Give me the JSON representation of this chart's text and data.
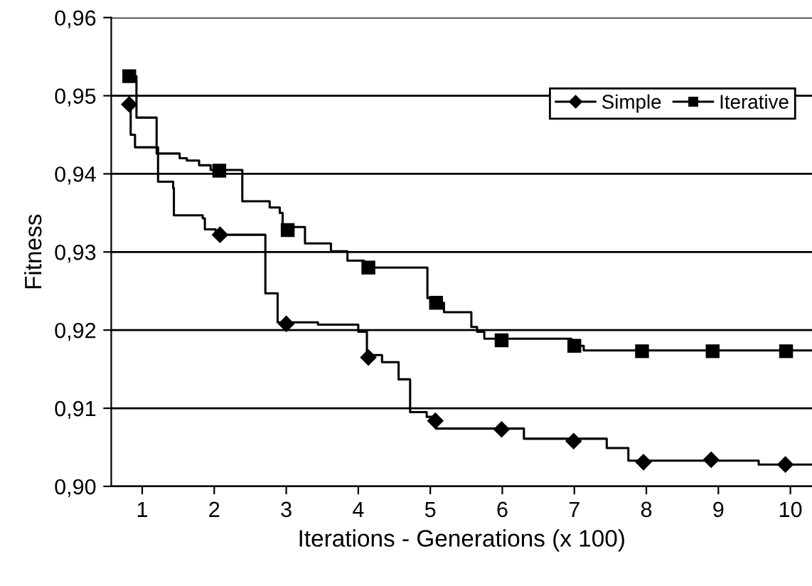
{
  "chart_data": {
    "type": "line",
    "xlabel": "Iterations - Generations (x 100)",
    "ylabel": "Fitness",
    "xlim": [
      0.57,
      10.3
    ],
    "ylim": [
      0.9,
      0.96
    ],
    "xticks": [
      1,
      2,
      3,
      4,
      5,
      6,
      7,
      8,
      9,
      10
    ],
    "yticks": [
      {
        "value": 0.9,
        "label": "0,90"
      },
      {
        "value": 0.91,
        "label": "0,91"
      },
      {
        "value": 0.92,
        "label": "0,92"
      },
      {
        "value": 0.93,
        "label": "0,93"
      },
      {
        "value": 0.94,
        "label": "0,94"
      },
      {
        "value": 0.95,
        "label": "0,95"
      },
      {
        "value": 0.96,
        "label": "0,96"
      }
    ],
    "grid": "y",
    "legend": "top right",
    "series": [
      {
        "color": "#000000",
        "x": [
          0.82,
          0.84,
          0.84,
          0.9,
          0.9,
          1.22,
          1.22,
          1.43,
          1.43,
          1.44,
          1.44,
          1.84,
          1.84,
          1.87,
          1.87,
          2.02,
          2.02,
          2.71,
          2.71,
          2.88,
          2.88,
          3.44,
          3.44,
          4.0,
          4.0,
          4.12,
          4.12,
          4.33,
          4.33,
          4.56,
          4.56,
          4.72,
          4.72,
          4.95,
          4.95,
          5.08,
          5.08,
          6.3,
          6.3,
          7.45,
          7.45,
          7.75,
          7.75,
          9.56,
          9.56,
          10.3
        ],
        "values": [
          0.9489,
          0.9489,
          0.945,
          0.945,
          0.9434,
          0.9434,
          0.939,
          0.939,
          0.9382,
          0.9382,
          0.9347,
          0.9347,
          0.9343,
          0.9343,
          0.9329,
          0.9329,
          0.9322,
          0.9322,
          0.9247,
          0.9247,
          0.921,
          0.921,
          0.9207,
          0.9207,
          0.9198,
          0.9198,
          0.9168,
          0.9168,
          0.9159,
          0.9159,
          0.9137,
          0.9137,
          0.9095,
          0.9095,
          0.9089,
          0.9089,
          0.9074,
          0.9074,
          0.9061,
          0.9061,
          0.9049,
          0.9049,
          0.9033,
          0.9033,
          0.9028,
          0.9028
        ]
      },
      {
        "color": "#000000",
        "x": [
          0.82,
          0.92,
          0.92,
          1.2,
          1.2,
          1.52,
          1.52,
          1.62,
          1.62,
          1.79,
          1.79,
          1.95,
          1.95,
          2.39,
          2.39,
          2.77,
          2.77,
          2.91,
          2.91,
          2.95,
          2.95,
          3.26,
          3.26,
          3.62,
          3.62,
          3.85,
          3.85,
          4.08,
          4.08,
          4.96,
          4.96,
          5.13,
          5.13,
          5.19,
          5.19,
          5.57,
          5.57,
          5.65,
          5.65,
          5.75,
          5.75,
          6.96,
          6.96,
          7.13,
          7.13,
          10.3
        ],
        "values": [
          0.9525,
          0.9525,
          0.9472,
          0.9472,
          0.9426,
          0.9426,
          0.942,
          0.942,
          0.9417,
          0.9417,
          0.9411,
          0.9411,
          0.9405,
          0.9405,
          0.9365,
          0.9365,
          0.9357,
          0.9357,
          0.935,
          0.935,
          0.9332,
          0.9332,
          0.9311,
          0.9311,
          0.9301,
          0.9301,
          0.9289,
          0.9289,
          0.928,
          0.928,
          0.9241,
          0.9241,
          0.9235,
          0.9235,
          0.9223,
          0.9223,
          0.9204,
          0.9204,
          0.9198,
          0.9198,
          0.9189,
          0.9189,
          0.918,
          0.918,
          0.9174,
          0.9174
        ]
      },
      {
        "type": "scatter",
        "name": "Simple",
        "color": "#000000",
        "marker": "diamond",
        "x": [
          0.82,
          2.08,
          3.0,
          4.14,
          5.07,
          5.99,
          6.99,
          7.96,
          8.9,
          9.93
        ],
        "values": [
          0.9489,
          0.9322,
          0.9208,
          0.9165,
          0.9084,
          0.9073,
          0.9058,
          0.9031,
          0.9034,
          0.9028
        ]
      },
      {
        "type": "scatter",
        "name": "Iterative",
        "color": "#000000",
        "marker": "square",
        "x": [
          0.82,
          2.07,
          3.02,
          4.14,
          5.08,
          5.99,
          7.0,
          7.94,
          8.92,
          9.94
        ],
        "values": [
          0.9525,
          0.9404,
          0.9328,
          0.928,
          0.9235,
          0.9187,
          0.918,
          0.9173,
          0.9173,
          0.9173
        ]
      }
    ]
  }
}
